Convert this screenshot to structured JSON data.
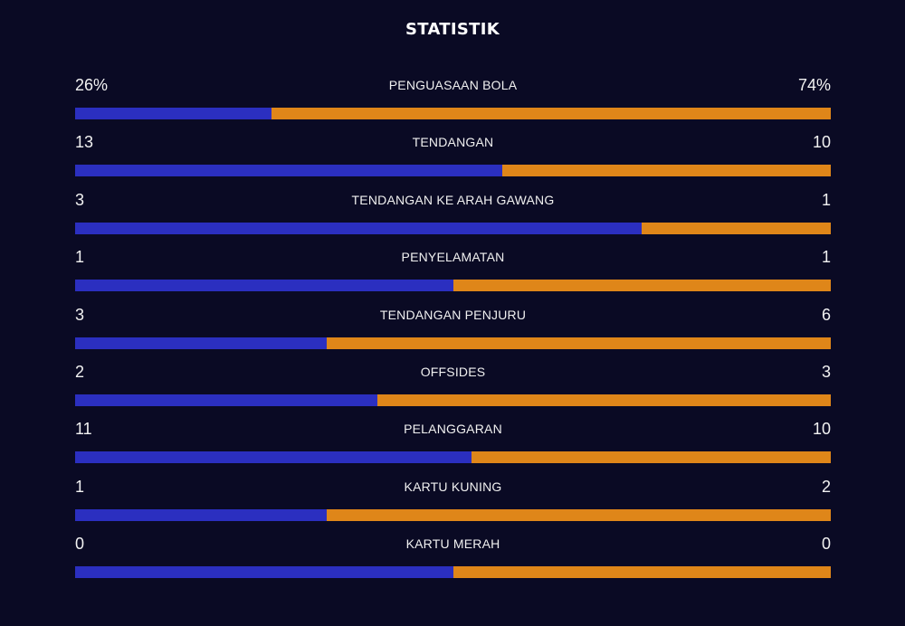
{
  "title": "STATISTIK",
  "colors": {
    "background": "#0a0a24",
    "home": "#2b2fc0",
    "away": "#df8619"
  },
  "stats": [
    {
      "label": "PENGUASAAN BOLA",
      "home": "26%",
      "away": "74%",
      "home_share": 0.26
    },
    {
      "label": "TENDANGAN",
      "home": "13",
      "away": "10",
      "home_share": 0.565
    },
    {
      "label": "TENDANGAN KE ARAH GAWANG",
      "home": "3",
      "away": "1",
      "home_share": 0.75
    },
    {
      "label": "PENYELAMATAN",
      "home": "1",
      "away": "1",
      "home_share": 0.5
    },
    {
      "label": "TENDANGAN PENJURU",
      "home": "3",
      "away": "6",
      "home_share": 0.333
    },
    {
      "label": "OFFSIDES",
      "home": "2",
      "away": "3",
      "home_share": 0.4
    },
    {
      "label": "PELANGGARAN",
      "home": "11",
      "away": "10",
      "home_share": 0.524
    },
    {
      "label": "KARTU KUNING",
      "home": "1",
      "away": "2",
      "home_share": 0.333
    },
    {
      "label": "KARTU MERAH",
      "home": "0",
      "away": "0",
      "home_share": 0.5
    }
  ]
}
